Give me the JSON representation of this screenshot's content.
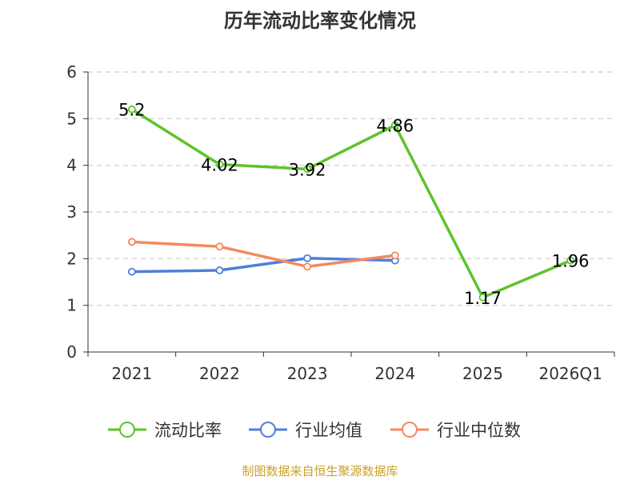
{
  "chart_data": {
    "type": "line",
    "title": "历年流动比率变化情况",
    "categories": [
      "2021",
      "2022",
      "2023",
      "2024",
      "2025",
      "2026Q1"
    ],
    "ylim": [
      0,
      6
    ],
    "yticks": [
      0,
      1,
      2,
      3,
      4,
      5,
      6
    ],
    "grid": true,
    "legend_position": "bottom",
    "series": [
      {
        "name": "流动比率",
        "color": "#5cc42b",
        "values": [
          5.2,
          4.02,
          3.92,
          4.86,
          1.17,
          1.96
        ],
        "labels": [
          "5.2",
          "4.02",
          "3.92",
          "4.86",
          "1.17",
          "1.96"
        ]
      },
      {
        "name": "行业均值",
        "color": "#4f7fdb",
        "values": [
          1.72,
          1.75,
          2.01,
          1.96,
          null,
          null
        ]
      },
      {
        "name": "行业中位数",
        "color": "#f5895c",
        "values": [
          2.36,
          2.26,
          1.83,
          2.07,
          null,
          null
        ]
      }
    ],
    "source": "制图数据来自恒生聚源数据库"
  }
}
